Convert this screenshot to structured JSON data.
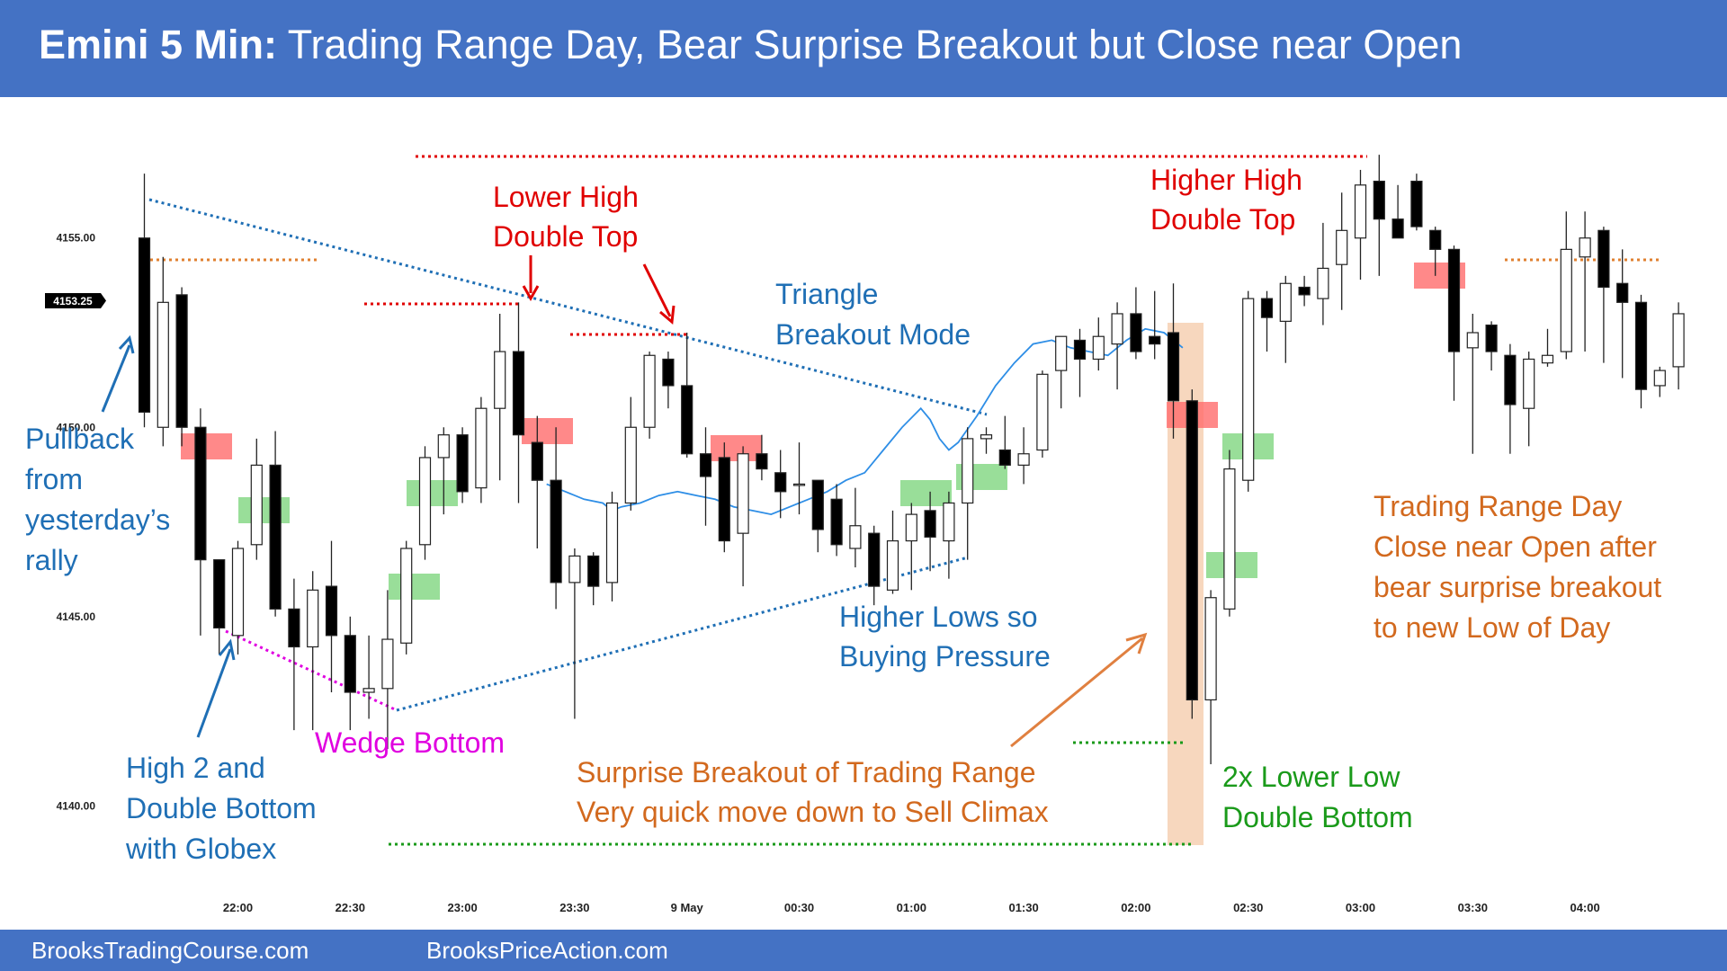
{
  "header": {
    "title_bold": "Emini 5 Min:",
    "title_rest": " Trading Range Day, Bear Surprise Breakout but Close near Open"
  },
  "footer": {
    "left": "BrooksTradingCourse.com",
    "right": "BrooksPriceAction.com"
  },
  "colors": {
    "header_bg": "#4472c4",
    "bull_candle": "#ffffff",
    "bear_candle": "#000000",
    "ema": "#2e8ee6",
    "red_marker": "#ff6b6b",
    "green_marker": "#7fd67f",
    "climax_highlight": "#f4c9a8"
  },
  "chart_data": {
    "type": "candlestick",
    "price_label": "4153.25",
    "y_ticks": [
      "4155.00",
      "4150.00",
      "4145.00",
      "4140.00"
    ],
    "y_tick_values": [
      4155,
      4150,
      4145,
      4140
    ],
    "ylim": [
      4137.3,
      4158.2
    ],
    "x_ticks": [
      "22:00",
      "22:30",
      "23:00",
      "23:30",
      "9 May",
      "00:30",
      "01:00",
      "01:30",
      "02:00",
      "02:30",
      "03:00",
      "03:30",
      "04:00"
    ],
    "x_tick_bar_index": [
      5,
      11,
      17,
      23,
      29,
      35,
      41,
      47,
      53,
      59,
      65,
      71,
      77
    ],
    "candles": [
      {
        "o": 4155.0,
        "h": 4156.7,
        "l": 4150.0,
        "c": 4150.4
      },
      {
        "o": 4150.0,
        "h": 4154.5,
        "l": 4149.5,
        "c": 4153.3
      },
      {
        "o": 4153.5,
        "h": 4153.7,
        "l": 4149.5,
        "c": 4150.0
      },
      {
        "o": 4150.0,
        "h": 4150.5,
        "l": 4144.5,
        "c": 4146.5
      },
      {
        "o": 4146.5,
        "h": 4146.5,
        "l": 4144.0,
        "c": 4144.7
      },
      {
        "o": 4144.5,
        "h": 4147.0,
        "l": 4144.0,
        "c": 4146.8
      },
      {
        "o": 4146.9,
        "h": 4149.7,
        "l": 4146.5,
        "c": 4149.0
      },
      {
        "o": 4149.0,
        "h": 4149.9,
        "l": 4145.0,
        "c": 4145.2
      },
      {
        "o": 4145.2,
        "h": 4146.0,
        "l": 4142.0,
        "c": 4144.2
      },
      {
        "o": 4144.2,
        "h": 4146.2,
        "l": 4142.0,
        "c": 4145.7
      },
      {
        "o": 4145.8,
        "h": 4147.0,
        "l": 4143.0,
        "c": 4144.5
      },
      {
        "o": 4144.5,
        "h": 4145.0,
        "l": 4142.0,
        "c": 4143.0
      },
      {
        "o": 4143.0,
        "h": 4144.5,
        "l": 4142.3,
        "c": 4143.1
      },
      {
        "o": 4143.1,
        "h": 4145.7,
        "l": 4141.5,
        "c": 4144.4
      },
      {
        "o": 4144.3,
        "h": 4147.0,
        "l": 4144.0,
        "c": 4146.8
      },
      {
        "o": 4146.9,
        "h": 4149.5,
        "l": 4146.5,
        "c": 4149.2
      },
      {
        "o": 4149.2,
        "h": 4150.0,
        "l": 4147.7,
        "c": 4149.8
      },
      {
        "o": 4149.8,
        "h": 4150.0,
        "l": 4148.0,
        "c": 4148.3
      },
      {
        "o": 4148.4,
        "h": 4150.8,
        "l": 4148.0,
        "c": 4150.5
      },
      {
        "o": 4150.5,
        "h": 4153.0,
        "l": 4148.6,
        "c": 4152.0
      },
      {
        "o": 4152.0,
        "h": 4153.3,
        "l": 4148.0,
        "c": 4149.8
      },
      {
        "o": 4149.6,
        "h": 4150.3,
        "l": 4146.8,
        "c": 4148.6
      },
      {
        "o": 4148.6,
        "h": 4150.0,
        "l": 4145.2,
        "c": 4145.9
      },
      {
        "o": 4145.9,
        "h": 4146.8,
        "l": 4142.3,
        "c": 4146.6
      },
      {
        "o": 4146.6,
        "h": 4146.7,
        "l": 4145.3,
        "c": 4145.8
      },
      {
        "o": 4145.9,
        "h": 4148.3,
        "l": 4145.4,
        "c": 4148.0
      },
      {
        "o": 4148.0,
        "h": 4150.8,
        "l": 4147.8,
        "c": 4150.0
      },
      {
        "o": 4150.0,
        "h": 4152.0,
        "l": 4149.7,
        "c": 4151.9
      },
      {
        "o": 4151.8,
        "h": 4152.0,
        "l": 4150.5,
        "c": 4151.1
      },
      {
        "o": 4151.1,
        "h": 4152.5,
        "l": 4149.2,
        "c": 4149.3
      },
      {
        "o": 4149.3,
        "h": 4150.0,
        "l": 4147.4,
        "c": 4148.7
      },
      {
        "o": 4149.2,
        "h": 4149.6,
        "l": 4146.7,
        "c": 4147.0
      },
      {
        "o": 4147.2,
        "h": 4149.5,
        "l": 4145.8,
        "c": 4149.3
      },
      {
        "o": 4149.3,
        "h": 4149.8,
        "l": 4148.6,
        "c": 4148.9
      },
      {
        "o": 4148.8,
        "h": 4149.4,
        "l": 4147.6,
        "c": 4148.3
      },
      {
        "o": 4148.5,
        "h": 4149.6,
        "l": 4147.7,
        "c": 4148.5
      },
      {
        "o": 4148.6,
        "h": 4148.6,
        "l": 4146.7,
        "c": 4147.3
      },
      {
        "o": 4148.1,
        "h": 4148.5,
        "l": 4146.6,
        "c": 4146.9
      },
      {
        "o": 4146.8,
        "h": 4148.4,
        "l": 4146.3,
        "c": 4147.4
      },
      {
        "o": 4147.2,
        "h": 4147.4,
        "l": 4145.3,
        "c": 4145.8
      },
      {
        "o": 4145.7,
        "h": 4147.8,
        "l": 4145.6,
        "c": 4147.0
      },
      {
        "o": 4147.0,
        "h": 4148.0,
        "l": 4145.7,
        "c": 4147.7
      },
      {
        "o": 4147.8,
        "h": 4148.3,
        "l": 4146.2,
        "c": 4147.1
      },
      {
        "o": 4147.0,
        "h": 4148.3,
        "l": 4146.0,
        "c": 4148.0
      },
      {
        "o": 4148.0,
        "h": 4150.0,
        "l": 4146.5,
        "c": 4149.7
      },
      {
        "o": 4149.7,
        "h": 4150.0,
        "l": 4149.3,
        "c": 4149.8
      },
      {
        "o": 4149.4,
        "h": 4150.3,
        "l": 4148.9,
        "c": 4149.0
      },
      {
        "o": 4149.0,
        "h": 4150.0,
        "l": 4148.5,
        "c": 4149.3
      },
      {
        "o": 4149.4,
        "h": 4151.5,
        "l": 4149.2,
        "c": 4151.4
      },
      {
        "o": 4151.5,
        "h": 4152.4,
        "l": 4150.5,
        "c": 4152.4
      },
      {
        "o": 4152.3,
        "h": 4152.6,
        "l": 4150.8,
        "c": 4151.8
      },
      {
        "o": 4151.8,
        "h": 4152.9,
        "l": 4151.5,
        "c": 4152.4
      },
      {
        "o": 4152.2,
        "h": 4153.3,
        "l": 4151.0,
        "c": 4153.0
      },
      {
        "o": 4153.0,
        "h": 4153.7,
        "l": 4151.8,
        "c": 4152.0
      },
      {
        "o": 4152.4,
        "h": 4153.6,
        "l": 4151.8,
        "c": 4152.2
      },
      {
        "o": 4152.5,
        "h": 4153.8,
        "l": 4149.7,
        "c": 4150.7
      },
      {
        "o": 4150.7,
        "h": 4151.0,
        "l": 4142.3,
        "c": 4142.8
      },
      {
        "o": 4142.8,
        "h": 4145.7,
        "l": 4141.1,
        "c": 4145.5
      },
      {
        "o": 4145.2,
        "h": 4149.4,
        "l": 4145.0,
        "c": 4148.9
      },
      {
        "o": 4148.6,
        "h": 4153.6,
        "l": 4148.3,
        "c": 4153.4
      },
      {
        "o": 4153.4,
        "h": 4153.6,
        "l": 4152.0,
        "c": 4152.9
      },
      {
        "o": 4152.8,
        "h": 4154.0,
        "l": 4151.7,
        "c": 4153.8
      },
      {
        "o": 4153.7,
        "h": 4154.0,
        "l": 4153.2,
        "c": 4153.5
      },
      {
        "o": 4153.4,
        "h": 4155.4,
        "l": 4152.7,
        "c": 4154.2
      },
      {
        "o": 4154.3,
        "h": 4156.2,
        "l": 4153.1,
        "c": 4155.2
      },
      {
        "o": 4155.0,
        "h": 4156.8,
        "l": 4153.9,
        "c": 4156.4
      },
      {
        "o": 4156.5,
        "h": 4157.2,
        "l": 4154.0,
        "c": 4155.5
      },
      {
        "o": 4155.5,
        "h": 4156.4,
        "l": 4155.0,
        "c": 4155.0
      },
      {
        "o": 4156.5,
        "h": 4156.7,
        "l": 4155.2,
        "c": 4155.3
      },
      {
        "o": 4155.2,
        "h": 4155.3,
        "l": 4154.0,
        "c": 4154.7
      },
      {
        "o": 4154.7,
        "h": 4154.8,
        "l": 4150.7,
        "c": 4152.0
      },
      {
        "o": 4152.1,
        "h": 4153.0,
        "l": 4149.3,
        "c": 4152.5
      },
      {
        "o": 4152.7,
        "h": 4152.8,
        "l": 4151.5,
        "c": 4152.0
      },
      {
        "o": 4151.9,
        "h": 4152.2,
        "l": 4149.3,
        "c": 4150.6
      },
      {
        "o": 4150.5,
        "h": 4152.0,
        "l": 4149.5,
        "c": 4151.8
      },
      {
        "o": 4151.7,
        "h": 4152.6,
        "l": 4151.6,
        "c": 4151.9
      },
      {
        "o": 4152.0,
        "h": 4155.7,
        "l": 4151.8,
        "c": 4154.7
      },
      {
        "o": 4154.5,
        "h": 4155.7,
        "l": 4152.0,
        "c": 4155.0
      },
      {
        "o": 4155.2,
        "h": 4155.3,
        "l": 4151.7,
        "c": 4153.7
      },
      {
        "o": 4153.8,
        "h": 4154.7,
        "l": 4151.3,
        "c": 4153.3
      },
      {
        "o": 4153.3,
        "h": 4153.5,
        "l": 4150.5,
        "c": 4151.0
      },
      {
        "o": 4151.1,
        "h": 4151.6,
        "l": 4150.8,
        "c": 4151.5
      },
      {
        "o": 4151.6,
        "h": 4153.3,
        "l": 4151.0,
        "c": 4153.0
      }
    ],
    "ema": [
      [
        43,
        4148.5
      ],
      [
        45,
        4148.3
      ],
      [
        47,
        4148.1
      ],
      [
        49,
        4148.0
      ],
      [
        50,
        4147.8
      ],
      [
        51,
        4147.9
      ],
      [
        53,
        4148.0
      ],
      [
        55,
        4148.2
      ],
      [
        57,
        4148.3
      ],
      [
        59,
        4148.2
      ],
      [
        61,
        4148.1
      ],
      [
        63,
        4147.9
      ],
      [
        65,
        4147.8
      ],
      [
        67,
        4147.7
      ],
      [
        69,
        4147.9
      ],
      [
        71,
        4148.1
      ],
      [
        73,
        4148.3
      ],
      [
        75,
        4148.6
      ],
      [
        77,
        4148.8
      ],
      [
        79,
        4149.4
      ],
      [
        81,
        4150.0
      ],
      [
        83,
        4150.5
      ],
      [
        84,
        4150.2
      ],
      [
        85,
        4149.7
      ],
      [
        86,
        4149.4
      ],
      [
        87,
        4149.6
      ],
      [
        89,
        4150.3
      ],
      [
        91,
        4151.1
      ],
      [
        93,
        4151.7
      ],
      [
        95,
        4152.2
      ],
      [
        97,
        4152.3
      ],
      [
        99,
        4152.1
      ],
      [
        101,
        4152.0
      ],
      [
        103,
        4151.9
      ],
      [
        105,
        4152.3
      ],
      [
        107,
        4152.6
      ],
      [
        109,
        4152.5
      ],
      [
        111,
        4152.1
      ]
    ],
    "annotations": [
      {
        "text": "Lower High",
        "color": "#e00000"
      },
      {
        "text": "Double Top",
        "color": "#e00000"
      },
      {
        "text": "Higher High",
        "color": "#e00000"
      },
      {
        "text": "Double Top",
        "color": "#e00000"
      },
      {
        "text": "Triangle",
        "color": "#1f6fb5"
      },
      {
        "text": "Breakout Mode",
        "color": "#1f6fb5"
      },
      {
        "text": "Pullback",
        "color": "#1f6fb5"
      },
      {
        "text": "from",
        "color": "#1f6fb5"
      },
      {
        "text": "yesterday’s",
        "color": "#1f6fb5"
      },
      {
        "text": "rally",
        "color": "#1f6fb5"
      },
      {
        "text": "Higher Lows so",
        "color": "#1f6fb5"
      },
      {
        "text": "Buying Pressure",
        "color": "#1f6fb5"
      },
      {
        "text": "High 2 and",
        "color": "#1f6fb5"
      },
      {
        "text": "Double Bottom",
        "color": "#1f6fb5"
      },
      {
        "text": "with Globex",
        "color": "#1f6fb5"
      },
      {
        "text": "Wedge Bottom",
        "color": "#e000e0"
      },
      {
        "text": "Surprise Breakout of Trading Range",
        "color": "#d2691e"
      },
      {
        "text": "Very quick move down to Sell Climax",
        "color": "#d2691e"
      },
      {
        "text": "2x Lower Low",
        "color": "#1a9a1a"
      },
      {
        "text": "Double Bottom",
        "color": "#1a9a1a"
      },
      {
        "text": "Trading Range Day",
        "color": "#d2691e"
      },
      {
        "text": "Close near Open after",
        "color": "#d2691e"
      },
      {
        "text": "bear surprise breakout",
        "color": "#d2691e"
      },
      {
        "text": "to new Low of Day",
        "color": "#d2691e"
      }
    ]
  }
}
